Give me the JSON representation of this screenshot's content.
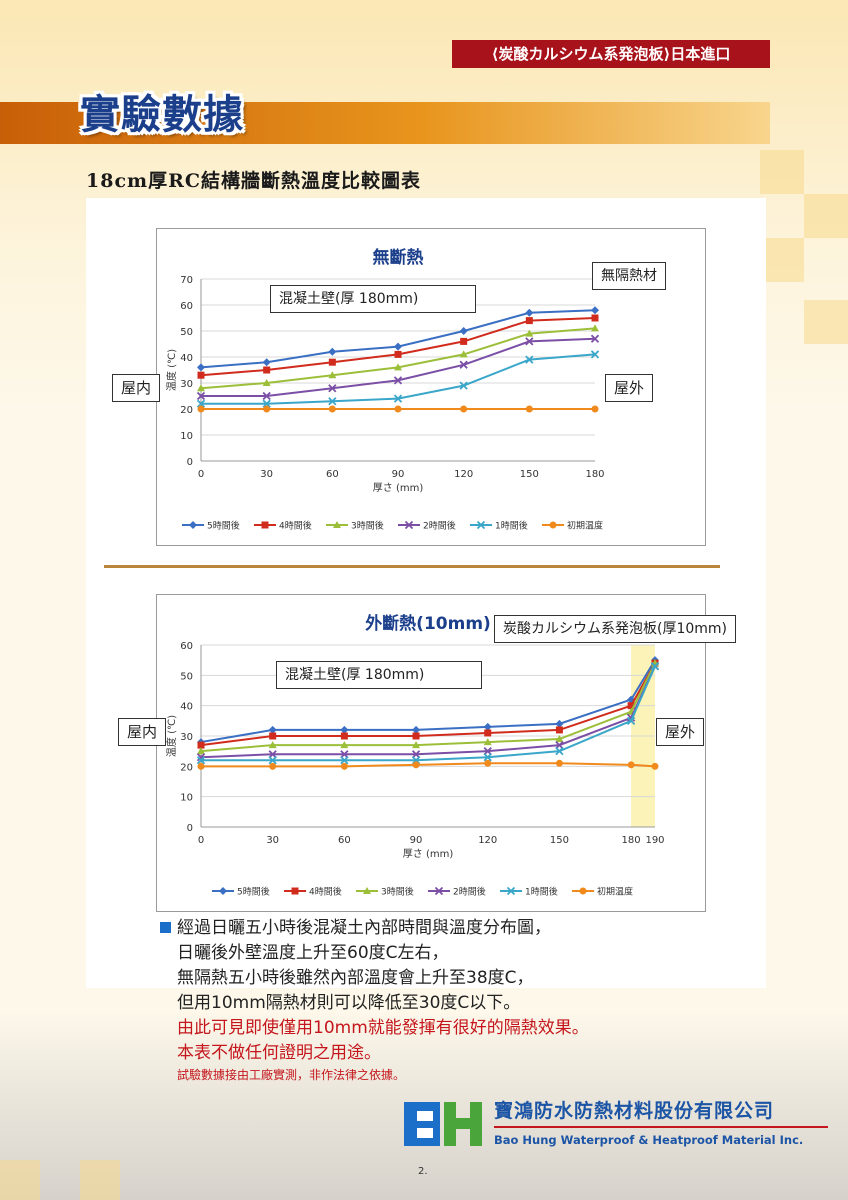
{
  "header": {
    "tag": "⟨炭酸カルシウム系発泡板⟩日本進口",
    "title": "實驗數據",
    "section_title": "18cm厚RC結構牆斷熱溫度比較圖表"
  },
  "colors": {
    "5h": "#3a6fc4",
    "4h": "#d02b1c",
    "3h": "#9cbf3a",
    "2h": "#7b4fa6",
    "1h": "#3aa6c9",
    "init": "#f08a1d",
    "accent_red": "#a8121b",
    "brand_blue": "#1c55a6"
  },
  "chart_data": [
    {
      "type": "line",
      "title": "無斷熱",
      "xlabel": "厚さ (mm)",
      "ylabel": "温度 (℃)",
      "xlim": [
        0,
        180
      ],
      "ylim": [
        0,
        70
      ],
      "xticks": [
        0,
        30,
        60,
        90,
        120,
        150,
        180
      ],
      "yticks": [
        0,
        10,
        20,
        30,
        40,
        50,
        60,
        70
      ],
      "legend_position": "bottom",
      "grid": true,
      "x": [
        0,
        30,
        60,
        90,
        120,
        150,
        180
      ],
      "series": [
        {
          "name": "5時間後",
          "key": "5h",
          "marker": "diamond",
          "values": [
            36,
            38,
            42,
            44,
            50,
            57,
            58
          ]
        },
        {
          "name": "4時間後",
          "key": "4h",
          "marker": "square",
          "values": [
            33,
            35,
            38,
            41,
            46,
            54,
            55
          ]
        },
        {
          "name": "3時間後",
          "key": "3h",
          "marker": "triangle",
          "values": [
            28,
            30,
            33,
            36,
            41,
            49,
            51
          ]
        },
        {
          "name": "2時間後",
          "key": "2h",
          "marker": "cross",
          "values": [
            25,
            25,
            28,
            31,
            37,
            46,
            47
          ]
        },
        {
          "name": "1時間後",
          "key": "1h",
          "marker": "cross",
          "values": [
            22,
            22,
            23,
            24,
            29,
            39,
            41
          ]
        },
        {
          "name": "初期温度",
          "key": "init",
          "marker": "circle",
          "values": [
            20,
            20,
            20,
            20,
            20,
            20,
            20
          ]
        }
      ],
      "annotations": {
        "wall": "混凝土壁(厚 180mm)",
        "material": "無隔熱材",
        "inside": "屋内",
        "outside": "屋外"
      }
    },
    {
      "type": "line",
      "title": "外斷熱(10mm)",
      "xlabel": "厚さ (mm)",
      "ylabel": "温度 (℃)",
      "xlim": [
        0,
        190
      ],
      "ylim": [
        0,
        60
      ],
      "xticks": [
        0,
        30,
        60,
        90,
        120,
        150,
        180,
        190
      ],
      "yticks": [
        0,
        10,
        20,
        30,
        40,
        50,
        60
      ],
      "legend_position": "bottom",
      "grid": true,
      "highlight_range": [
        180,
        190
      ],
      "x": [
        0,
        30,
        60,
        90,
        120,
        150,
        180,
        190
      ],
      "series": [
        {
          "name": "5時間後",
          "key": "5h",
          "marker": "diamond",
          "values": [
            28,
            32,
            32,
            32,
            33,
            34,
            42,
            55
          ]
        },
        {
          "name": "4時間後",
          "key": "4h",
          "marker": "square",
          "values": [
            27,
            30,
            30,
            30,
            31,
            32,
            40,
            54
          ]
        },
        {
          "name": "3時間後",
          "key": "3h",
          "marker": "triangle",
          "values": [
            25,
            27,
            27,
            27,
            28,
            29,
            38,
            54
          ]
        },
        {
          "name": "2時間後",
          "key": "2h",
          "marker": "cross",
          "values": [
            23,
            24,
            24,
            24,
            25,
            27,
            36,
            53
          ]
        },
        {
          "name": "1時間後",
          "key": "1h",
          "marker": "cross",
          "values": [
            22,
            22,
            22,
            22,
            23,
            25,
            35,
            53
          ]
        },
        {
          "name": "初期温度",
          "key": "init",
          "marker": "circle",
          "values": [
            20,
            20,
            20,
            20.5,
            21,
            21,
            20.5,
            20
          ]
        }
      ],
      "annotations": {
        "wall": "混凝土壁(厚 180mm)",
        "material": "炭酸カルシウム系発泡板(厚10mm)",
        "inside": "屋内",
        "outside": "屋外"
      }
    }
  ],
  "notes": {
    "line1": "經過日曬五小時後混凝土內部時間與溫度分布圖，",
    "line2": "日曬後外壁溫度上升至60度C左右，",
    "line3": "無隔熱五小時後雖然內部溫度會上升至38度C，",
    "line4": "但用10mm隔熱材則可以降低至30度C以下。",
    "line5": "由此可見即使僅用10mm就能發揮有很好的隔熱效果。",
    "line6": "本表不做任何證明之用途。",
    "line7": "試驗數據接由工廠實測，非作法律之依據。"
  },
  "footer": {
    "logo": "BH",
    "company_zh": "寶鴻防水防熱材料股份有限公司",
    "company_en": "Bao Hung Waterproof & Heatproof  Material Inc.",
    "page": "2."
  }
}
